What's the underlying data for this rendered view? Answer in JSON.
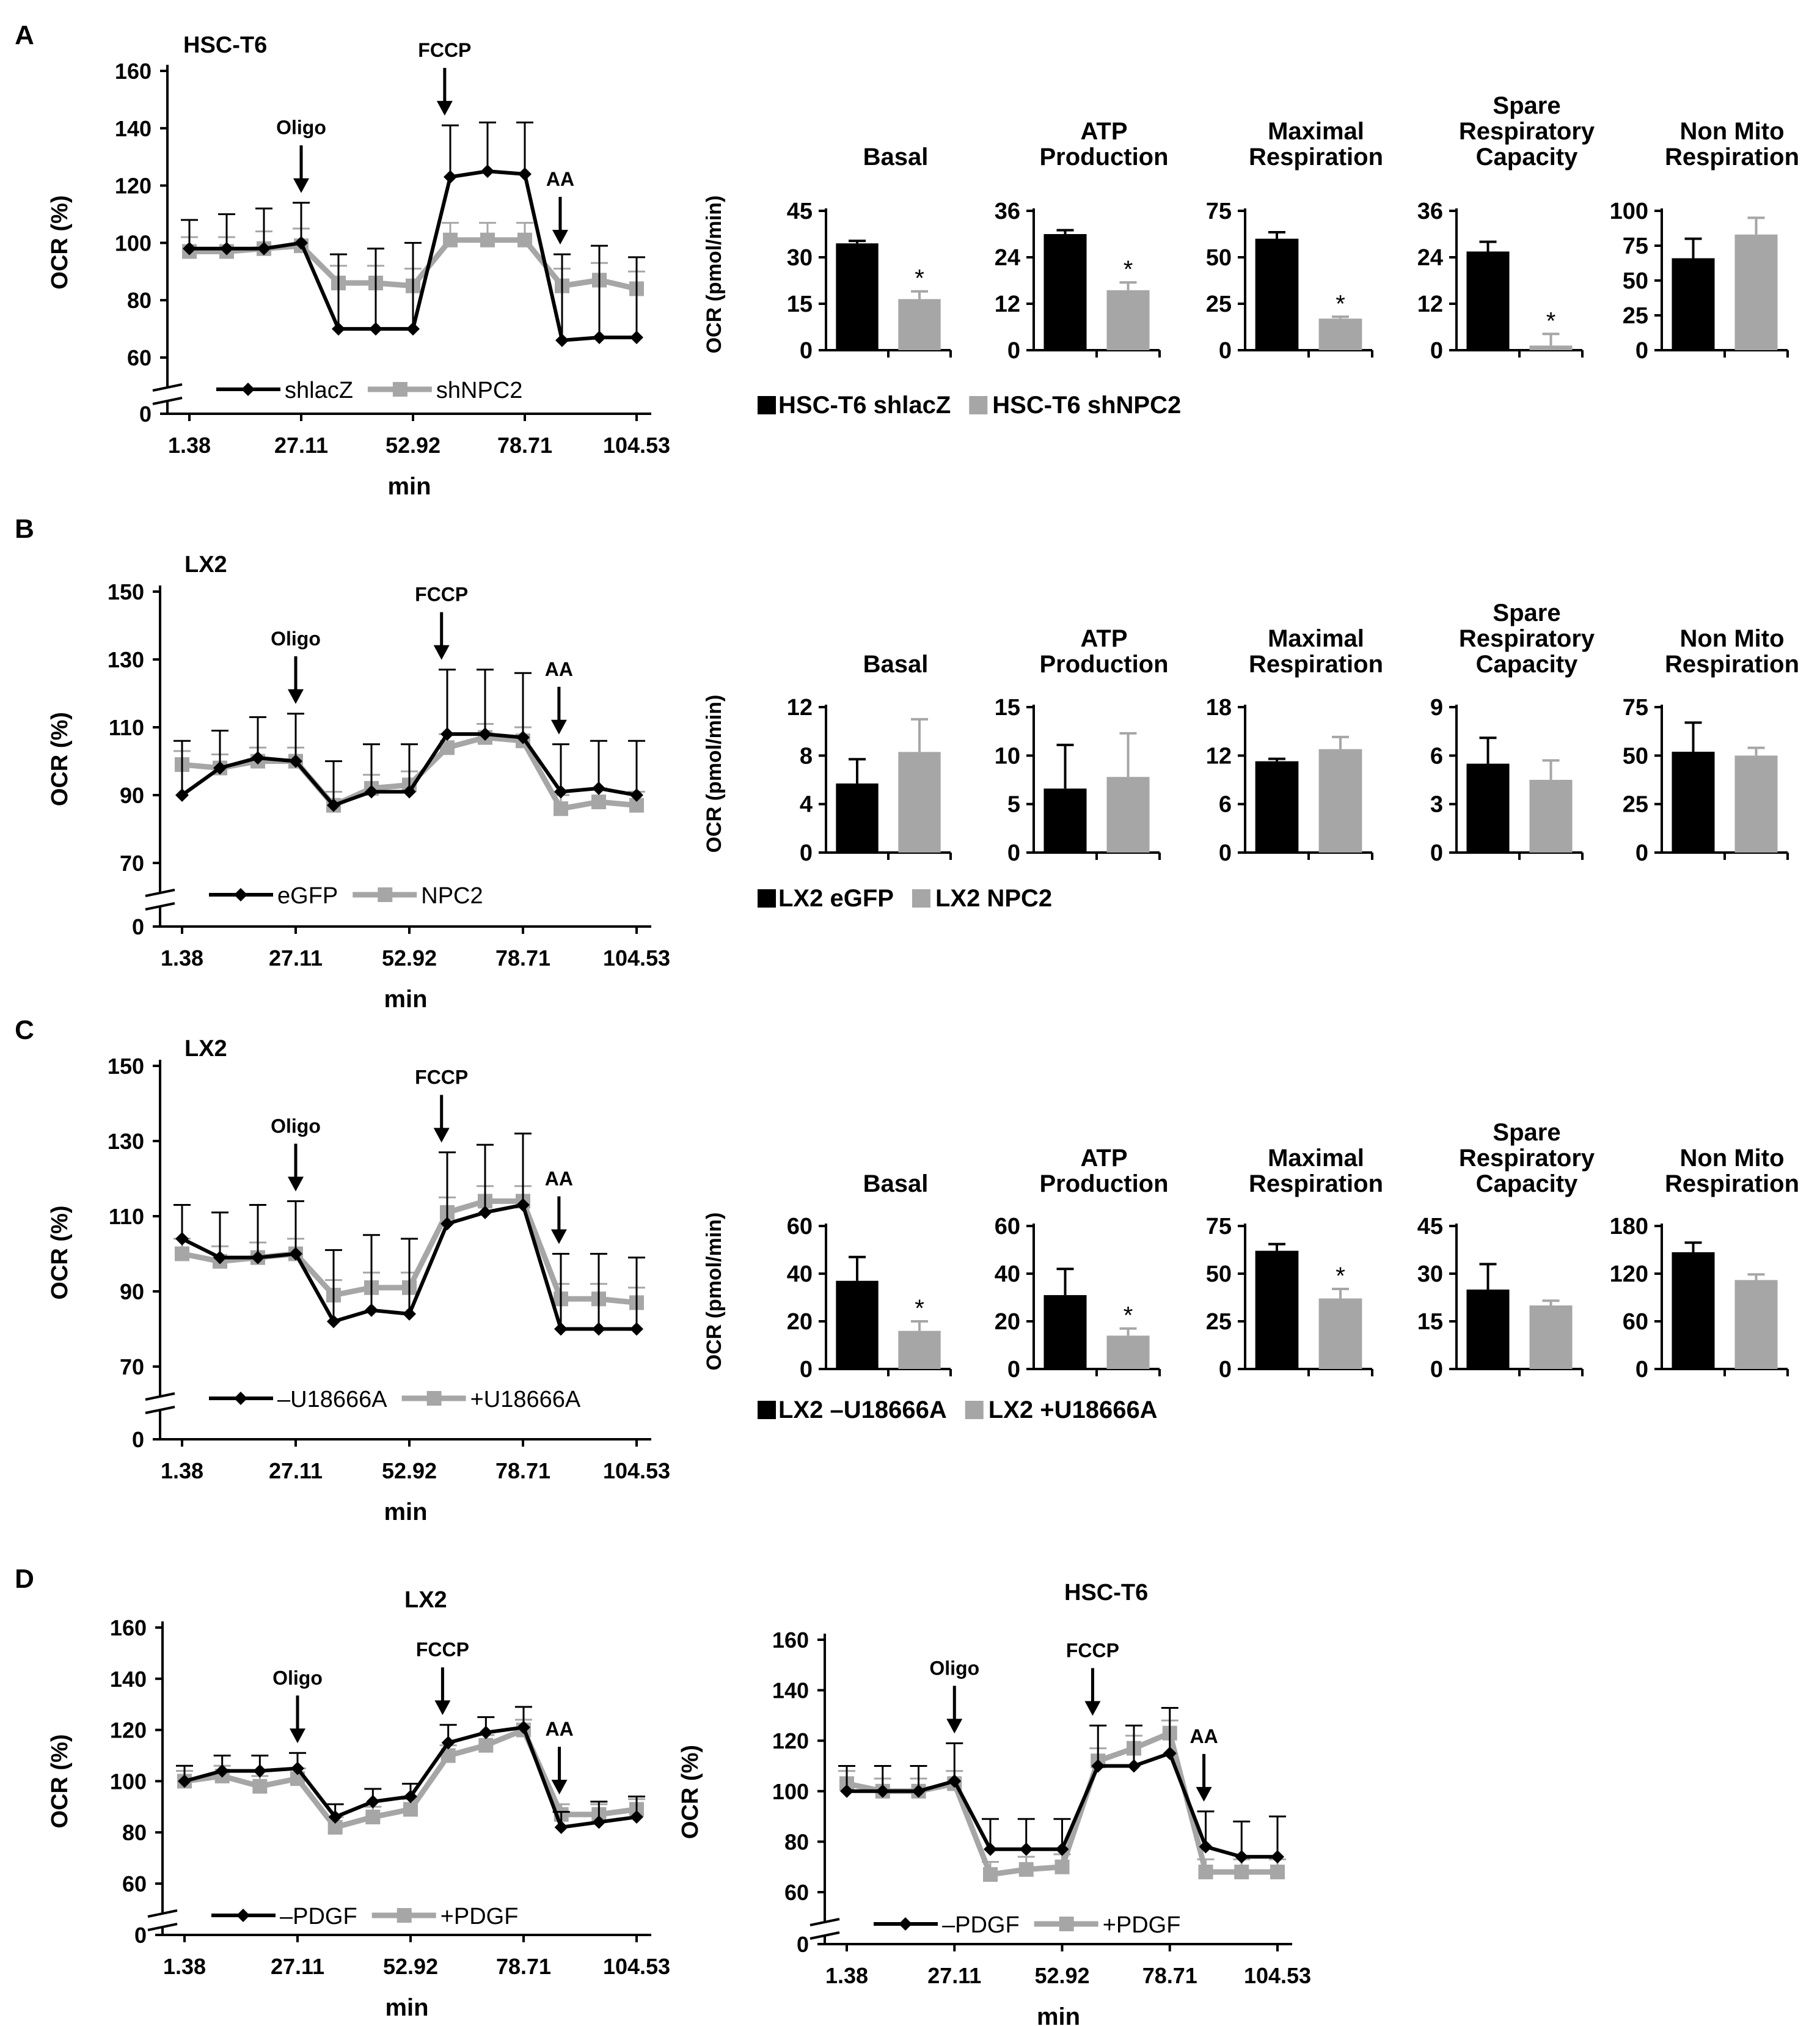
{
  "figure": {
    "background": "#ffffff",
    "black": "#000000",
    "gray": "#a6a6a6"
  },
  "chart_data": [
    {
      "type": "line",
      "id": "A_line",
      "panel_label": "A",
      "title": "HSC-T6",
      "xlabel": "min",
      "ylabel": "OCR (%)",
      "x_tick_labels": [
        "1.38",
        "27.11",
        "52.92",
        "78.71",
        "104.53"
      ],
      "y_ticks": [
        60,
        80,
        100,
        120,
        140,
        160
      ],
      "ylim": [
        60,
        160
      ],
      "y_zero_label": "0",
      "annotations": {
        "oligo": "Oligo",
        "fccp": "FCCP",
        "aa": "AA"
      },
      "series": [
        {
          "name": "shlacZ",
          "color": "#000000",
          "values": [
            98,
            98,
            98,
            100,
            70,
            70,
            70,
            123,
            125,
            124,
            66,
            67,
            67
          ],
          "errors": [
            10,
            12,
            14,
            14,
            26,
            28,
            30,
            18,
            17,
            18,
            30,
            32,
            28
          ]
        },
        {
          "name": "shNPC2",
          "color": "#a6a6a6",
          "values": [
            97,
            97,
            98,
            99,
            86,
            86,
            85,
            101,
            101,
            101,
            85,
            87,
            84
          ],
          "errors": [
            5,
            5,
            6,
            6,
            6,
            6,
            6,
            6,
            6,
            6,
            6,
            6,
            6
          ]
        }
      ]
    },
    {
      "type": "bar",
      "id": "A_bars",
      "ylabel": "OCR (pmol/min)",
      "legend": [
        "HSC-T6 shlacZ",
        "HSC-T6 shNPC2"
      ],
      "panels": [
        {
          "title": "Basal",
          "ylim": [
            0,
            45
          ],
          "ticks": [
            0,
            15,
            30,
            45
          ],
          "values": [
            34.5,
            16.5
          ],
          "errors": [
            0.8,
            2.5
          ],
          "sig": [
            false,
            true
          ]
        },
        {
          "title": "ATP\nProduction",
          "ylim": [
            0,
            36
          ],
          "ticks": [
            0,
            12,
            24,
            36
          ],
          "values": [
            30,
            15.5
          ],
          "errors": [
            1,
            2
          ],
          "sig": [
            false,
            true
          ]
        },
        {
          "title": "Maximal\nRespiration",
          "ylim": [
            0,
            75
          ],
          "ticks": [
            0,
            25,
            50,
            75
          ],
          "values": [
            60,
            17
          ],
          "errors": [
            3.5,
            1
          ],
          "sig": [
            false,
            true
          ]
        },
        {
          "title": "Spare\nRespiratory\nCapacity",
          "ylim": [
            0,
            36
          ],
          "ticks": [
            0,
            12,
            24,
            36
          ],
          "values": [
            25.5,
            1.2
          ],
          "errors": [
            2.5,
            3
          ],
          "sig": [
            false,
            true
          ]
        },
        {
          "title": "Non Mito\nRespiration",
          "ylim": [
            0,
            100
          ],
          "ticks": [
            0,
            25,
            50,
            75,
            100
          ],
          "values": [
            66,
            83
          ],
          "errors": [
            14,
            12
          ],
          "sig": [
            false,
            false
          ]
        }
      ]
    },
    {
      "type": "line",
      "id": "B_line",
      "panel_label": "B",
      "title": "LX2",
      "xlabel": "min",
      "ylabel": "OCR (%)",
      "x_tick_labels": [
        "1.38",
        "27.11",
        "52.92",
        "78.71",
        "104.53"
      ],
      "y_ticks": [
        70,
        90,
        110,
        130,
        150
      ],
      "ylim": [
        70,
        150
      ],
      "y_zero_label": "0",
      "annotations": {
        "oligo": "Oligo",
        "fccp": "FCCP",
        "aa": "AA"
      },
      "series": [
        {
          "name": "eGFP",
          "color": "#000000",
          "values": [
            90,
            98,
            101,
            100,
            87,
            91,
            91,
            108,
            108,
            107,
            91,
            92,
            90
          ],
          "errors": [
            16,
            11,
            12,
            14,
            13,
            14,
            14,
            19,
            19,
            19,
            14,
            14,
            16
          ]
        },
        {
          "name": "NPC2",
          "color": "#a6a6a6",
          "values": [
            99,
            98,
            100,
            100,
            87,
            92,
            93,
            104,
            107,
            106,
            86,
            88,
            87
          ],
          "errors": [
            4,
            4,
            4,
            4,
            4,
            4,
            4,
            4,
            4,
            4,
            4,
            4,
            4
          ]
        }
      ]
    },
    {
      "type": "bar",
      "id": "B_bars",
      "ylabel": "OCR (pmol/min)",
      "legend": [
        "LX2 eGFP",
        "LX2 NPC2"
      ],
      "panels": [
        {
          "title": "Basal",
          "ylim": [
            0,
            12
          ],
          "ticks": [
            0,
            4,
            8,
            12
          ],
          "values": [
            5.7,
            8.3
          ],
          "errors": [
            2,
            2.7
          ],
          "sig": [
            false,
            false
          ]
        },
        {
          "title": "ATP\nProduction",
          "ylim": [
            0,
            15
          ],
          "ticks": [
            0,
            5,
            10,
            15
          ],
          "values": [
            6.6,
            7.8
          ],
          "errors": [
            4.5,
            4.5
          ],
          "sig": [
            false,
            false
          ]
        },
        {
          "title": "Maximal\nRespiration",
          "ylim": [
            0,
            18
          ],
          "ticks": [
            0,
            6,
            12,
            18
          ],
          "values": [
            11.3,
            12.8
          ],
          "errors": [
            0.3,
            1.5
          ],
          "sig": [
            false,
            false
          ]
        },
        {
          "title": "Spare\nRespiratory\nCapacity",
          "ylim": [
            0,
            9
          ],
          "ticks": [
            0,
            3,
            6,
            9
          ],
          "values": [
            5.5,
            4.5
          ],
          "errors": [
            1.6,
            1.2
          ],
          "sig": [
            false,
            false
          ]
        },
        {
          "title": "Non Mito\nRespiration",
          "ylim": [
            0,
            75
          ],
          "ticks": [
            0,
            25,
            50,
            75
          ],
          "values": [
            52,
            50
          ],
          "errors": [
            15,
            4
          ],
          "sig": [
            false,
            false
          ]
        }
      ]
    },
    {
      "type": "line",
      "id": "C_line",
      "panel_label": "C",
      "title": "LX2",
      "xlabel": "min",
      "ylabel": "OCR (%)",
      "x_tick_labels": [
        "1.38",
        "27.11",
        "52.92",
        "78.71",
        "104.53"
      ],
      "y_ticks": [
        70,
        90,
        110,
        130,
        150
      ],
      "ylim": [
        70,
        150
      ],
      "y_zero_label": "0",
      "annotations": {
        "oligo": "Oligo",
        "fccp": "FCCP",
        "aa": "AA"
      },
      "series": [
        {
          "name": "–U18666A",
          "color": "#000000",
          "values": [
            104,
            99,
            99,
            100,
            82,
            85,
            84,
            108,
            111,
            113,
            80,
            80,
            80
          ],
          "errors": [
            9,
            12,
            14,
            14,
            19,
            20,
            20,
            19,
            18,
            19,
            20,
            20,
            19
          ]
        },
        {
          "name": "+U18666A",
          "color": "#a6a6a6",
          "values": [
            100,
            98,
            99,
            100,
            89,
            91,
            91,
            111,
            114,
            114,
            88,
            88,
            87
          ],
          "errors": [
            4,
            4,
            4,
            4,
            4,
            4,
            4,
            4,
            4,
            4,
            4,
            4,
            4
          ]
        }
      ]
    },
    {
      "type": "bar",
      "id": "C_bars",
      "ylabel": "OCR (pmol/min)",
      "legend": [
        "LX2 –U18666A",
        "LX2 +U18666A"
      ],
      "panels": [
        {
          "title": "Basal",
          "ylim": [
            0,
            60
          ],
          "ticks": [
            0,
            20,
            40,
            60
          ],
          "values": [
            37,
            16
          ],
          "errors": [
            10,
            4
          ],
          "sig": [
            false,
            true
          ]
        },
        {
          "title": "ATP\nProduction",
          "ylim": [
            0,
            60
          ],
          "ticks": [
            0,
            20,
            40,
            60
          ],
          "values": [
            31,
            14
          ],
          "errors": [
            11,
            3
          ],
          "sig": [
            false,
            true
          ]
        },
        {
          "title": "Maximal\nRespiration",
          "ylim": [
            0,
            75
          ],
          "ticks": [
            0,
            25,
            50,
            75
          ],
          "values": [
            62,
            37
          ],
          "errors": [
            3.5,
            5
          ],
          "sig": [
            false,
            true
          ]
        },
        {
          "title": "Spare\nRespiratory\nCapacity",
          "ylim": [
            0,
            45
          ],
          "ticks": [
            0,
            15,
            30,
            45
          ],
          "values": [
            25,
            20
          ],
          "errors": [
            8,
            1.5
          ],
          "sig": [
            false,
            false
          ]
        },
        {
          "title": "Non Mito\nRespiration",
          "ylim": [
            0,
            180
          ],
          "ticks": [
            0,
            60,
            120,
            180
          ],
          "values": [
            147,
            112
          ],
          "errors": [
            12,
            7
          ],
          "sig": [
            false,
            false
          ]
        }
      ]
    },
    {
      "type": "line",
      "id": "D_left",
      "panel_label": "D",
      "title": "LX2",
      "xlabel": "min",
      "ylabel": "OCR (%)",
      "x_tick_labels": [
        "1.38",
        "27.11",
        "52.92",
        "78.71",
        "104.53"
      ],
      "y_ticks": [
        60,
        80,
        100,
        120,
        140,
        160
      ],
      "ylim": [
        60,
        160
      ],
      "y_zero_label": "0",
      "annotations": {
        "oligo": "Oligo",
        "fccp": "FCCP",
        "aa": "AA"
      },
      "series": [
        {
          "name": "–PDGF",
          "color": "#000000",
          "values": [
            100,
            104,
            104,
            105,
            86,
            92,
            94,
            115,
            119,
            121,
            82,
            84,
            86
          ],
          "errors": [
            6,
            6,
            6,
            6,
            5,
            5,
            5,
            7,
            6,
            8,
            6,
            8,
            8
          ]
        },
        {
          "name": "+PDGF",
          "color": "#a6a6a6",
          "values": [
            100,
            102,
            98,
            101,
            82,
            86,
            89,
            110,
            114,
            120,
            87,
            87,
            89
          ],
          "errors": [
            4,
            4,
            4,
            4,
            4,
            4,
            4,
            4,
            4,
            4,
            4,
            4,
            4
          ]
        }
      ]
    },
    {
      "type": "line",
      "id": "D_right",
      "title": "HSC-T6",
      "xlabel": "min",
      "ylabel": "OCR (%)",
      "x_tick_labels": [
        "1.38",
        "27.11",
        "52.92",
        "78.71",
        "104.53"
      ],
      "y_ticks": [
        60,
        80,
        100,
        120,
        140,
        160
      ],
      "ylim": [
        60,
        160
      ],
      "y_zero_label": "0",
      "annotations": {
        "oligo": "Oligo",
        "fccp": "FCCP",
        "aa": "AA"
      },
      "series": [
        {
          "name": "–PDGF",
          "color": "#000000",
          "values": [
            100,
            100,
            100,
            104,
            77,
            77,
            77,
            110,
            110,
            115,
            78,
            74,
            74
          ],
          "errors": [
            10,
            10,
            10,
            15,
            12,
            12,
            12,
            16,
            16,
            18,
            14,
            14,
            16
          ]
        },
        {
          "name": "+PDGF",
          "color": "#a6a6a6",
          "values": [
            103,
            100,
            100,
            103,
            67,
            69,
            70,
            112,
            117,
            123,
            68,
            68,
            68
          ],
          "errors": [
            5,
            5,
            5,
            5,
            5,
            5,
            5,
            5,
            5,
            5,
            5,
            5,
            5
          ]
        }
      ]
    }
  ]
}
